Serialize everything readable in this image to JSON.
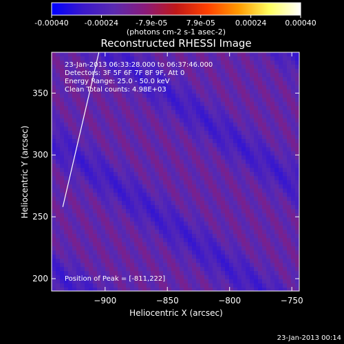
{
  "chart_data": {
    "type": "heatmap",
    "title": "Reconstructed RHESSI Image",
    "xlabel": "Heliocentric X (arcsec)",
    "ylabel": "Heliocentric Y (arcsec)",
    "xlim": [
      -943,
      -744
    ],
    "ylim": [
      190,
      383
    ],
    "x_ticks": [
      -900,
      -850,
      -800,
      -750
    ],
    "y_ticks": [
      200,
      250,
      300,
      350
    ],
    "colorbar": {
      "range": [
        -0.0004,
        0.0004
      ],
      "tick_values": [
        -0.0004,
        -0.00024,
        -7.9e-05,
        7.9e-05,
        0.00024,
        0.0004
      ],
      "tick_labels": [
        "-0.00040",
        "-0.00024",
        "-7.9e-05",
        "7.9e-05",
        "0.00024",
        "0.00040"
      ],
      "units": "(photons cm-2 s-1 asec-2)",
      "colors": [
        "#0000ff",
        "#3a18cc",
        "#5a2ab0",
        "#8a1a7a",
        "#c01818",
        "#ff4000",
        "#ff9a00",
        "#ffff60",
        "#ffffff"
      ]
    },
    "annotations": {
      "time_range": "23-Jan-2013 06:33:28.000 to 06:37:46.000",
      "detectors": "Detectors: 3F 5F 6F 7F 8F 9F, Att 0",
      "energy_range": "Energy Range: 25.0 - 50.0 keV",
      "clean_counts": "Clean    Total counts: 4.98E+03",
      "peak_position": "Position of Peak = [-811,222]"
    },
    "limb_line": {
      "x": [
        -934,
        -905
      ],
      "y": [
        258,
        383
      ]
    },
    "bands": [
      {
        "offset": -1150,
        "amplitude": 1.0
      },
      {
        "offset": -1045,
        "amplitude": 0.85
      },
      {
        "offset": -945,
        "amplitude": 0.9
      },
      {
        "offset": -840,
        "amplitude": 0.8
      }
    ],
    "band_slope": -0.72
  },
  "footer": {
    "date": "23-Jan-2013 00:14"
  }
}
